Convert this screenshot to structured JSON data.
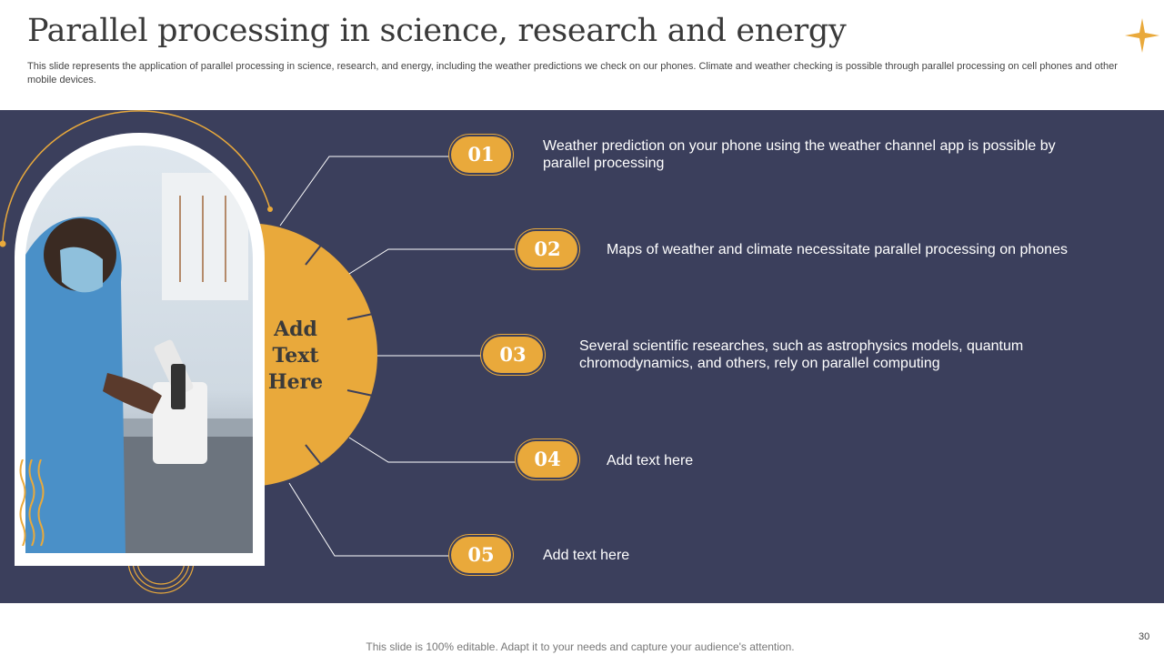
{
  "header": {
    "title": "Parallel processing in science, research and energy",
    "subtitle": "This slide represents the application of parallel processing in science, research, and energy, including the weather predictions we check on our phones. Climate and weather checking is possible through parallel processing on cell phones and other mobile devices."
  },
  "center": {
    "line1": "Add",
    "line2": "Text",
    "line3": "Here"
  },
  "items": [
    {
      "num": "01",
      "text": "Weather prediction on your phone using the weather channel app is possible by parallel processing"
    },
    {
      "num": "02",
      "text": "Maps of weather and climate necessitate parallel processing on phones"
    },
    {
      "num": "03",
      "text": "Several scientific researches, such as astrophysics models, quantum chromodynamics, and others, rely on parallel computing"
    },
    {
      "num": "04",
      "text": "Add text here"
    },
    {
      "num": "05",
      "text": "Add text here"
    }
  ],
  "footer": {
    "note": "This slide is 100% editable. Adapt it to your needs and capture your audience's attention.",
    "page": "30"
  },
  "colors": {
    "accent": "#e9a93b",
    "panel": "#3b3f5c"
  }
}
